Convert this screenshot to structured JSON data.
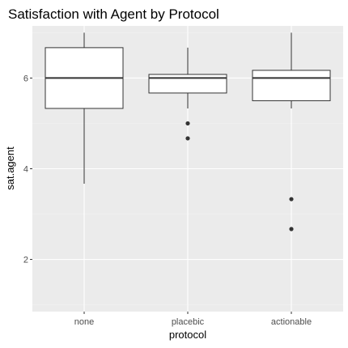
{
  "chart_data": {
    "type": "boxplot",
    "title": "Satisfaction with Agent by Protocol",
    "xlabel": "protocol",
    "ylabel": "sat.agent",
    "ylim": [
      0.85,
      7.15
    ],
    "yticks": [
      2,
      4,
      6
    ],
    "grid": true,
    "legend": "none",
    "categories": [
      "none",
      "placebic",
      "actionable"
    ],
    "boxes": [
      {
        "category": "none",
        "whisker_low": 3.67,
        "q1": 5.33,
        "median": 6.0,
        "q3": 6.67,
        "whisker_high": 7.0,
        "outliers": []
      },
      {
        "category": "placebic",
        "whisker_low": 5.33,
        "q1": 5.67,
        "median": 6.0,
        "q3": 6.08,
        "whisker_high": 6.67,
        "outliers": [
          5.0,
          4.67
        ]
      },
      {
        "category": "actionable",
        "whisker_low": 5.33,
        "q1": 5.5,
        "median": 6.0,
        "q3": 6.17,
        "whisker_high": 7.0,
        "outliers": [
          3.33,
          2.67
        ]
      }
    ],
    "colors": {
      "panel_background": "#ebebeb",
      "grid_major": "#ffffff",
      "grid_minor": "#f2f2f2",
      "box_fill": "#ffffff",
      "box_stroke": "#333333",
      "outlier": "#333333",
      "tick_text": "#4d4d4d"
    }
  }
}
